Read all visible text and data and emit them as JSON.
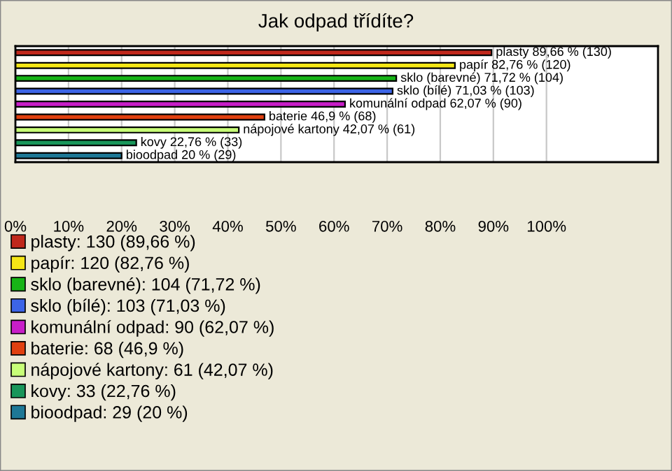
{
  "chart_data": {
    "type": "bar",
    "orientation": "horizontal",
    "title": "Jak odpad třídíte?",
    "categories": [
      null,
      null,
      null,
      null,
      null,
      null,
      null,
      null,
      null
    ],
    "series": [
      {
        "name": "plasty: 130 (89,66 %)",
        "color": "#c0281c",
        "values": [
          89.66,
          null,
          null,
          null,
          null,
          null,
          null,
          null,
          null
        ],
        "value_labels": [
          "plasty 89,66 % (130)",
          null,
          null,
          null,
          null,
          null,
          null,
          null,
          null
        ]
      },
      {
        "name": "papír: 120 (82,76 %)",
        "color": "#f5e616",
        "values": [
          null,
          82.76,
          null,
          null,
          null,
          null,
          null,
          null,
          null
        ],
        "value_labels": [
          null,
          "papír 82,76 % (120)",
          null,
          null,
          null,
          null,
          null,
          null,
          null
        ]
      },
      {
        "name": "sklo (barevné): 104 (71,72 %)",
        "color": "#17b417",
        "values": [
          null,
          null,
          71.72,
          null,
          null,
          null,
          null,
          null,
          null
        ],
        "value_labels": [
          null,
          null,
          "sklo (barevné) 71,72 % (104)",
          null,
          null,
          null,
          null,
          null,
          null
        ]
      },
      {
        "name": "sklo (bílé): 103 (71,03 %)",
        "color": "#3c64e6",
        "values": [
          null,
          null,
          null,
          71.03,
          null,
          null,
          null,
          null,
          null
        ],
        "value_labels": [
          null,
          null,
          null,
          "sklo (bílé) 71,03 % (103)",
          null,
          null,
          null,
          null,
          null
        ]
      },
      {
        "name": "komunální odpad: 90 (62,07 %)",
        "color": "#c81ec8",
        "values": [
          null,
          null,
          null,
          null,
          62.07,
          null,
          null,
          null,
          null
        ],
        "value_labels": [
          null,
          null,
          null,
          null,
          "komunální odpad 62,07 % (90)",
          null,
          null,
          null,
          null
        ]
      },
      {
        "name": "baterie: 68 (46,9 %)",
        "color": "#e04010",
        "values": [
          null,
          null,
          null,
          null,
          null,
          46.9,
          null,
          null,
          null
        ],
        "value_labels": [
          null,
          null,
          null,
          null,
          null,
          "baterie 46,9 % (68)",
          null,
          null,
          null
        ]
      },
      {
        "name": "nápojové kartony: 61 (42,07 %)",
        "color": "#c8ff78",
        "values": [
          null,
          null,
          null,
          null,
          null,
          null,
          42.07,
          null,
          null
        ],
        "value_labels": [
          null,
          null,
          null,
          null,
          null,
          null,
          "nápojové kartony 42,07 % (61)",
          null,
          null
        ]
      },
      {
        "name": "kovy: 33 (22,76 %)",
        "color": "#19965a",
        "values": [
          null,
          null,
          null,
          null,
          null,
          null,
          null,
          22.76,
          null
        ],
        "value_labels": [
          null,
          null,
          null,
          null,
          null,
          null,
          null,
          "kovy 22,76 % (33)",
          null
        ]
      },
      {
        "name": "bioodpad: 29 (20 %)",
        "color": "#1e7896",
        "values": [
          null,
          null,
          null,
          null,
          null,
          null,
          null,
          null,
          20
        ],
        "value_labels": [
          null,
          null,
          null,
          null,
          null,
          null,
          null,
          null,
          "bioodpad 20 % (29)"
        ]
      }
    ],
    "xlim": [
      0,
      121
    ],
    "xticks": [
      {
        "value": 0,
        "label": "0%"
      },
      {
        "value": 10,
        "label": "10%"
      },
      {
        "value": 20,
        "label": "20%"
      },
      {
        "value": 30,
        "label": "30%"
      },
      {
        "value": 40,
        "label": "40%"
      },
      {
        "value": 50,
        "label": "50%"
      },
      {
        "value": 60,
        "label": "60%"
      },
      {
        "value": 70,
        "label": "70%"
      },
      {
        "value": 80,
        "label": "80%"
      },
      {
        "value": 90,
        "label": "90%"
      },
      {
        "value": 100,
        "label": "100%"
      }
    ],
    "grid": "x",
    "legend": "bottom",
    "tick_labels": "x"
  }
}
